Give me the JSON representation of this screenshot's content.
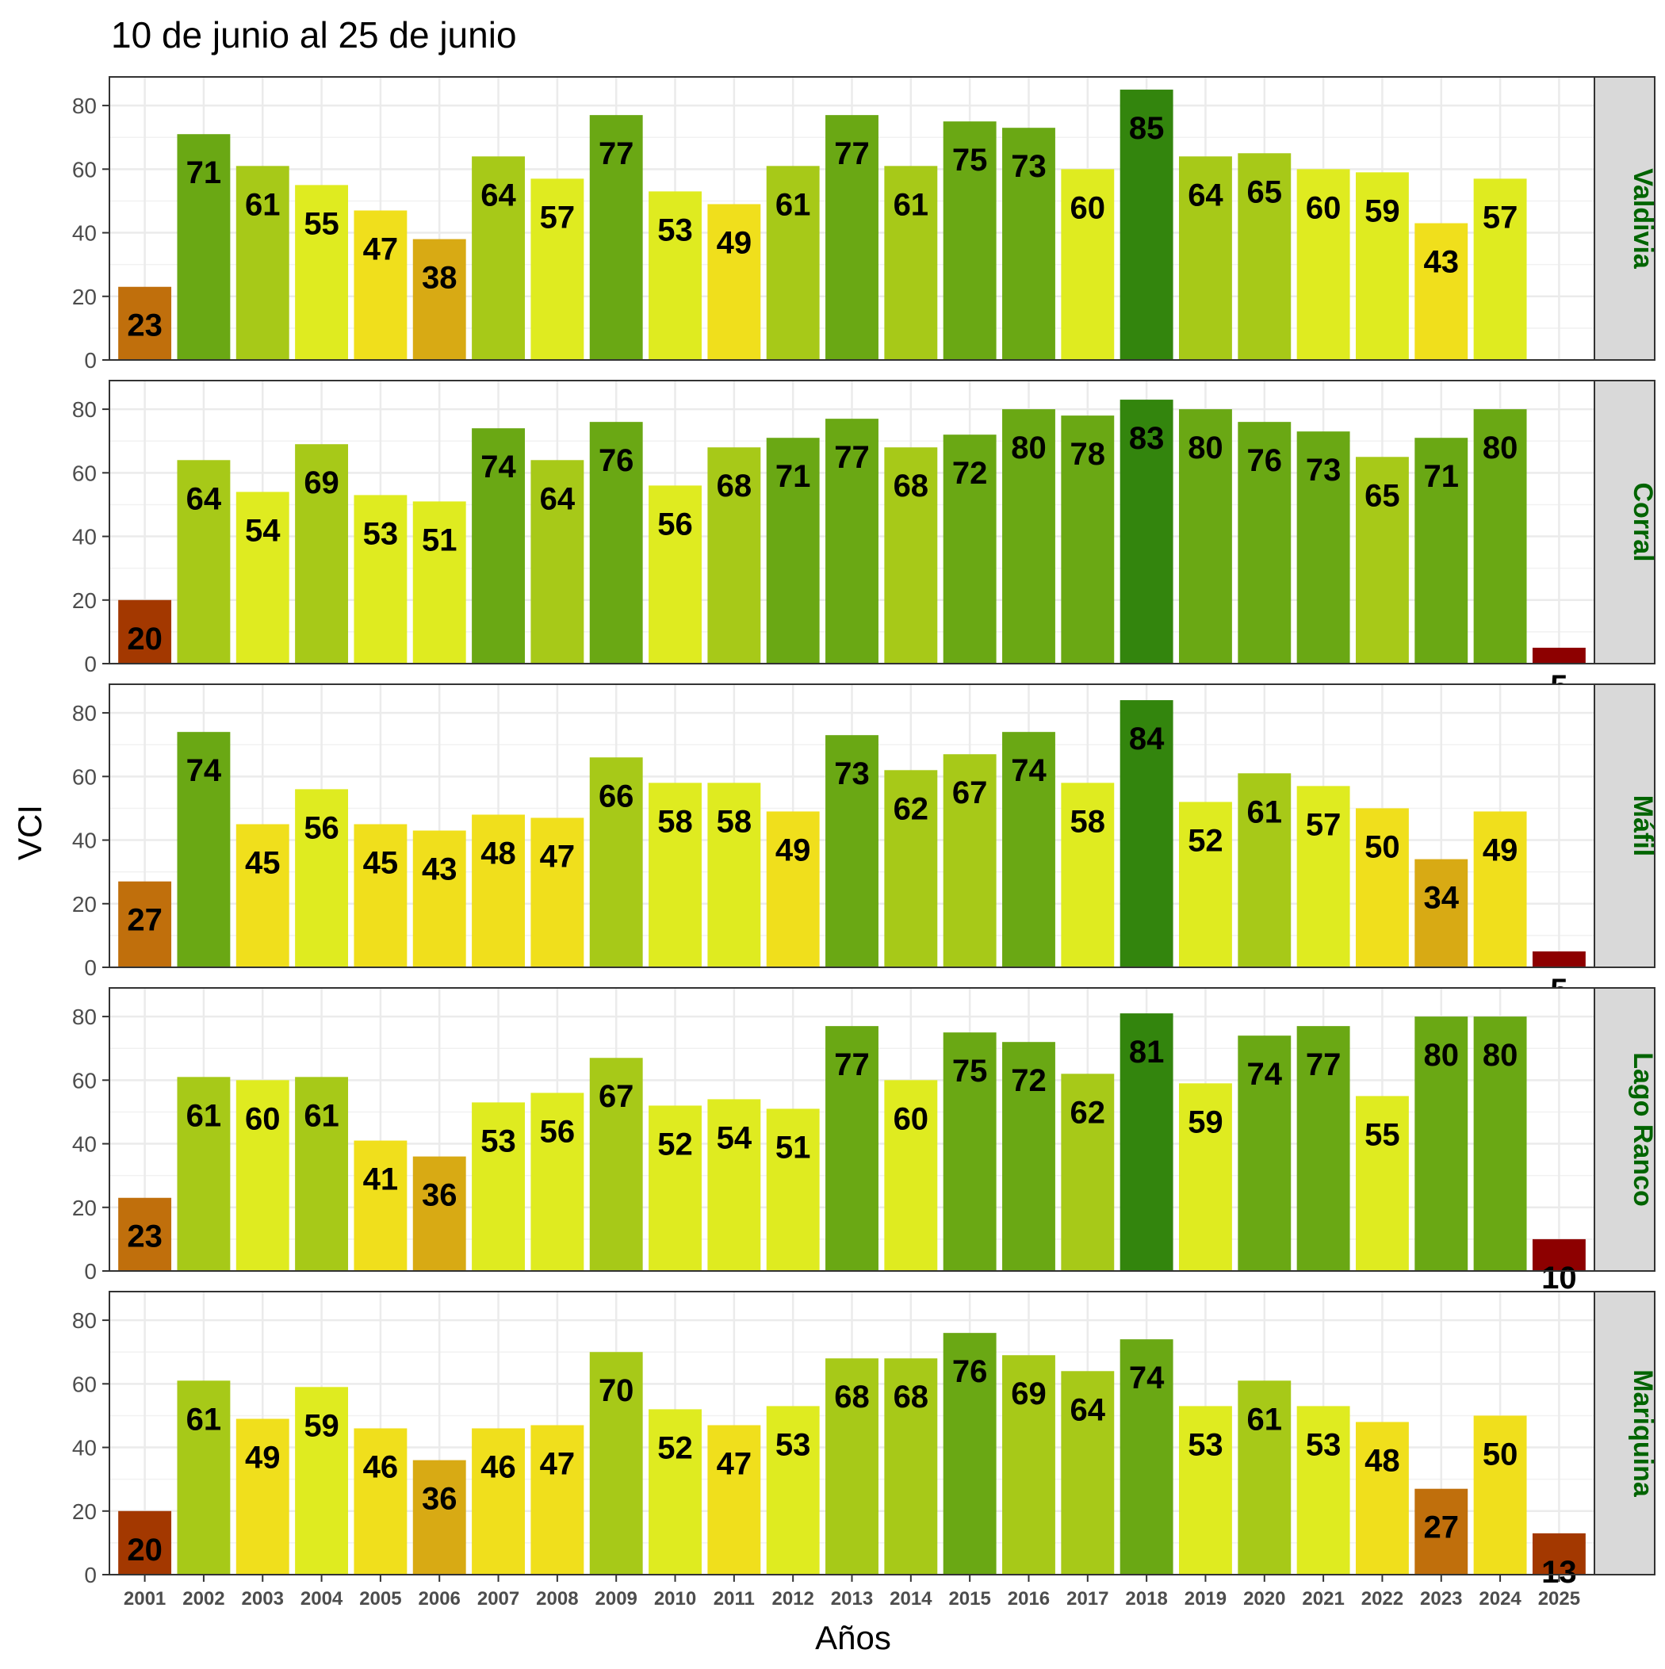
{
  "chart_data": {
    "type": "bar",
    "title": "10 de junio al 25 de junio",
    "xlabel": "Años",
    "ylabel": "VCI",
    "ylim": [
      0,
      89
    ],
    "yticks": [
      0,
      20,
      40,
      60,
      80
    ],
    "grid": true,
    "facet_strip_color": "#006400",
    "categories": [
      "2001",
      "2002",
      "2003",
      "2004",
      "2005",
      "2006",
      "2007",
      "2008",
      "2009",
      "2010",
      "2011",
      "2012",
      "2013",
      "2014",
      "2015",
      "2016",
      "2017",
      "2018",
      "2019",
      "2020",
      "2021",
      "2022",
      "2023",
      "2024",
      "2025"
    ],
    "series": [
      {
        "name": "Valdivia",
        "values": [
          23,
          71,
          61,
          55,
          47,
          38,
          64,
          57,
          77,
          53,
          49,
          61,
          77,
          61,
          75,
          73,
          60,
          85,
          64,
          65,
          60,
          59,
          43,
          57,
          0
        ]
      },
      {
        "name": "Corral",
        "values": [
          20,
          64,
          54,
          69,
          53,
          51,
          74,
          64,
          76,
          56,
          68,
          71,
          77,
          68,
          72,
          80,
          78,
          83,
          80,
          76,
          73,
          65,
          71,
          80,
          5
        ]
      },
      {
        "name": "Máfil",
        "values": [
          27,
          74,
          45,
          56,
          45,
          43,
          48,
          47,
          66,
          58,
          58,
          49,
          73,
          62,
          67,
          74,
          58,
          84,
          52,
          61,
          57,
          50,
          34,
          49,
          5
        ]
      },
      {
        "name": "Lago Ranco",
        "values": [
          23,
          61,
          60,
          61,
          41,
          36,
          53,
          56,
          67,
          52,
          54,
          51,
          77,
          60,
          75,
          72,
          62,
          81,
          59,
          74,
          77,
          55,
          80,
          80,
          10
        ]
      },
      {
        "name": "Mariquina",
        "values": [
          20,
          61,
          49,
          59,
          46,
          36,
          46,
          47,
          70,
          52,
          47,
          53,
          68,
          68,
          76,
          69,
          64,
          74,
          53,
          61,
          53,
          48,
          27,
          50,
          13
        ]
      }
    ]
  }
}
